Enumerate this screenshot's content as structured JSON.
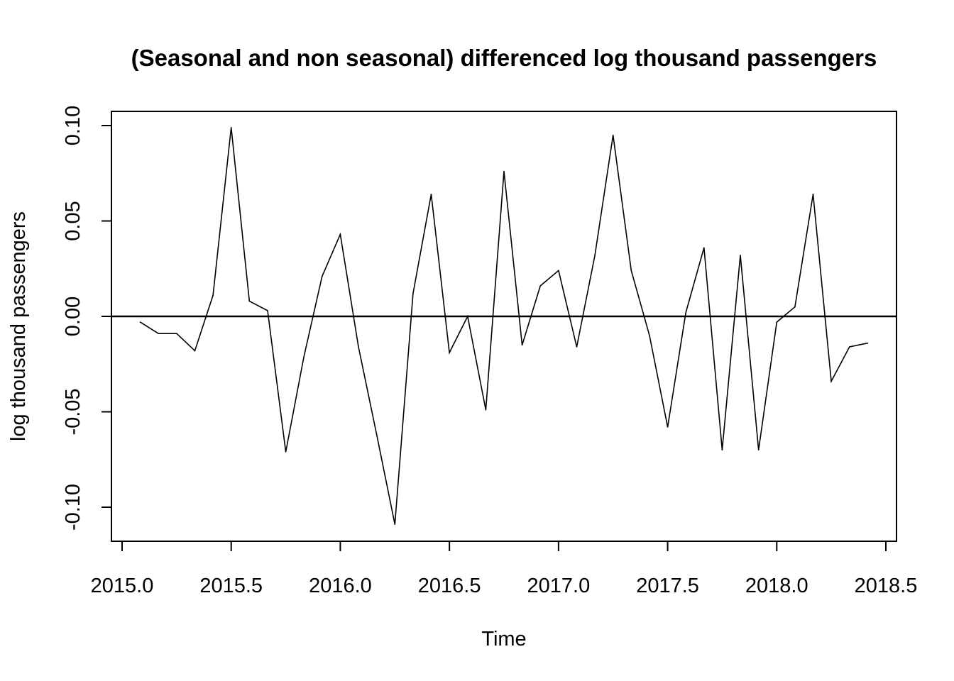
{
  "chart_data": {
    "type": "line",
    "title": "(Seasonal and non seasonal) differenced log thousand passengers",
    "xlabel": "Time",
    "ylabel": "log thousand passengers",
    "xlim": [
      2015.0,
      2018.5
    ],
    "ylim": [
      -0.1,
      0.1
    ],
    "x_ticks": [
      "2015.0",
      "2015.5",
      "2016.0",
      "2016.5",
      "2017.0",
      "2017.5",
      "2018.0",
      "2018.5"
    ],
    "y_ticks": [
      "-0.10",
      "-0.05",
      "0.00",
      "0.05",
      "0.10"
    ],
    "reference_line_y": 0.0,
    "grid": false,
    "series": [
      {
        "color": "#000000",
        "x": [
          2015.0833,
          2015.1667,
          2015.25,
          2015.3333,
          2015.4167,
          2015.5,
          2015.5833,
          2015.6667,
          2015.75,
          2015.8333,
          2015.9167,
          2016.0,
          2016.0833,
          2016.1667,
          2016.25,
          2016.3333,
          2016.4167,
          2016.5,
          2016.5833,
          2016.6667,
          2016.75,
          2016.8333,
          2016.9167,
          2017.0,
          2017.0833,
          2017.1667,
          2017.25,
          2017.3333,
          2017.4167,
          2017.5,
          2017.5833,
          2017.6667,
          2017.75,
          2017.8333,
          2017.9167,
          2018.0,
          2018.0833,
          2018.1667,
          2018.25,
          2018.3333,
          2018.4167
        ],
        "y": [
          -0.003,
          -0.009,
          -0.009,
          -0.018,
          0.011,
          0.099,
          0.008,
          0.003,
          -0.071,
          -0.021,
          0.021,
          0.043,
          -0.016,
          -0.062,
          -0.109,
          0.012,
          0.064,
          -0.019,
          0.0,
          -0.049,
          0.076,
          -0.015,
          0.016,
          0.024,
          -0.016,
          0.032,
          0.095,
          0.024,
          -0.01,
          -0.058,
          0.002,
          0.036,
          -0.07,
          0.032,
          -0.07,
          -0.003,
          0.005,
          0.064,
          -0.034,
          -0.016,
          -0.014
        ]
      }
    ]
  }
}
